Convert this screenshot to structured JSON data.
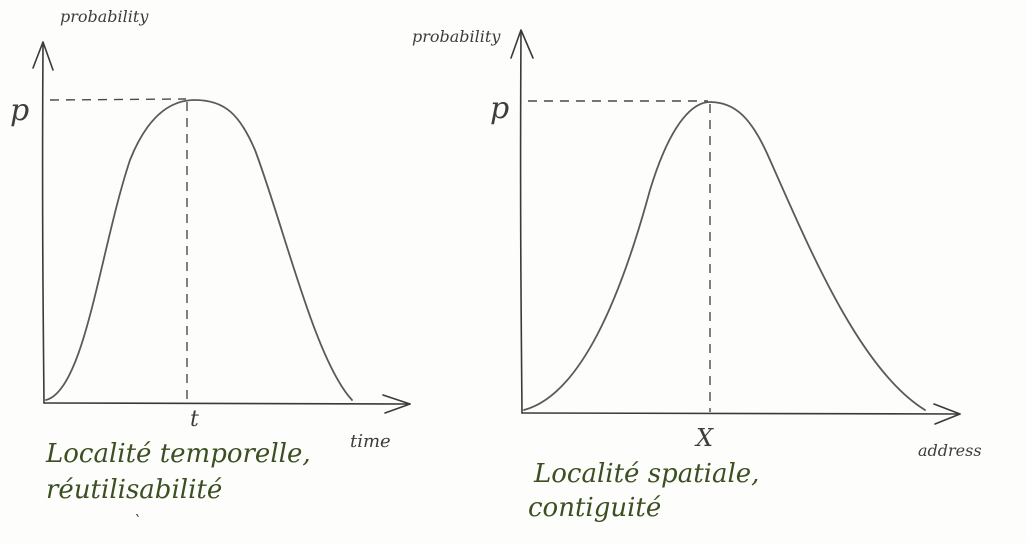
{
  "left_graph": {
    "y_axis_label": "probability",
    "peak_label": "p",
    "peak_x_label": "t",
    "x_axis_label": "time",
    "caption_line1": "Localité temporelle,",
    "caption_line2": "réutilisabilité"
  },
  "right_graph": {
    "y_axis_label": "probability",
    "peak_label": "p",
    "peak_x_label": "X",
    "x_axis_label": "address",
    "caption_line1": "Localité spatiale,",
    "caption_line2": "contiguité"
  },
  "colors": {
    "ink": "#3a3a3a",
    "curve": "#5a5a5a",
    "caption_ink": "#3b4f22",
    "paper": "#fdfdfb"
  }
}
